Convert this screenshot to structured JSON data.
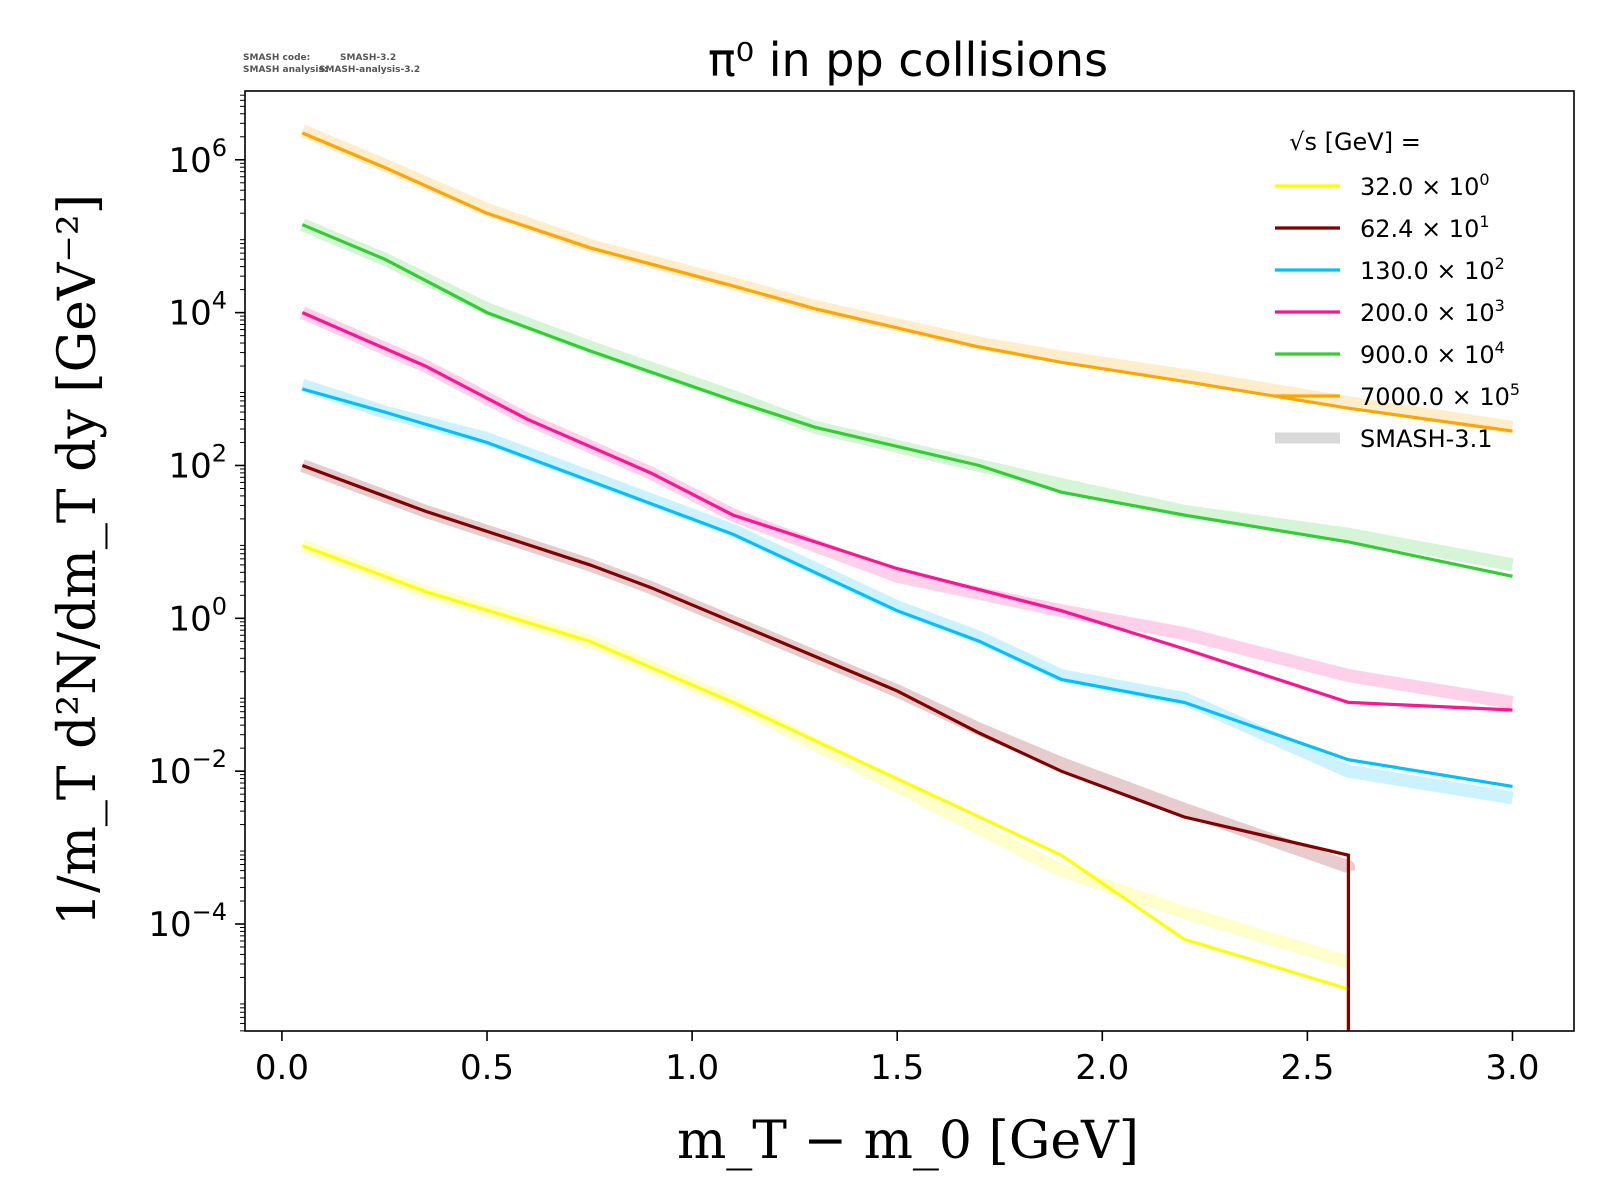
{
  "meta": {
    "code_label": "SMASH code:",
    "code_value": "SMASH-3.2",
    "analysis_label": "SMASH analysis:",
    "analysis_value": "SMASH-analysis-3.2"
  },
  "chart_data": {
    "type": "line",
    "title": "π⁰ in pp collisions",
    "xlabel": "m_T − m_0 [GeV]",
    "ylabel": "1/m_T d²N/dm_T dy [GeV⁻²]",
    "xlim": [
      -0.09,
      3.15
    ],
    "ylim_log10": [
      -5.4,
      6.9
    ],
    "y_scale": "log",
    "x_ticks": [
      "0.0",
      "0.5",
      "1.0",
      "1.5",
      "2.0",
      "2.5",
      "3.0"
    ],
    "y_tick_exponents": [
      6,
      4,
      2,
      0,
      -2,
      -4
    ],
    "legend": {
      "title": "√s [GeV] =",
      "placement": "top-right"
    },
    "series": [
      {
        "name": "32.0 × 10⁰",
        "mantissa": "32.0",
        "exponent": "0",
        "color": "#ffff00",
        "x": [
          0.05,
          0.35,
          0.75,
          1.1,
          1.5,
          1.9,
          2.2,
          2.6,
          2.6
        ],
        "log10_y": [
          0.95,
          0.35,
          -0.3,
          -1.1,
          -2.1,
          -3.1,
          -4.2,
          -4.85,
          -5.4
        ],
        "band_log10_y": [
          0.95,
          0.35,
          -0.3,
          -1.1,
          -2.2,
          -3.3,
          -3.85,
          -4.5,
          -4.5
        ]
      },
      {
        "name": "62.4 × 10¹",
        "mantissa": "62.4",
        "exponent": "1",
        "color": "#800000",
        "x": [
          0.05,
          0.35,
          0.75,
          0.9,
          1.3,
          1.5,
          1.7,
          1.9,
          2.2,
          2.6,
          2.6
        ],
        "log10_y": [
          2.0,
          1.4,
          0.7,
          0.4,
          -0.5,
          -0.95,
          -1.5,
          -2.0,
          -2.6,
          -3.1,
          -5.4
        ],
        "band_log10_y": [
          2.0,
          1.4,
          0.7,
          0.4,
          -0.5,
          -0.95,
          -1.45,
          -1.9,
          -2.5,
          -3.25,
          -3.3
        ]
      },
      {
        "name": "130.0 × 10²",
        "mantissa": "130.0",
        "exponent": "2",
        "color": "#00bfff",
        "x": [
          0.05,
          0.25,
          0.5,
          0.75,
          1.1,
          1.5,
          1.7,
          1.9,
          2.2,
          2.6,
          3.0
        ],
        "log10_y": [
          3.0,
          2.7,
          2.3,
          1.8,
          1.1,
          0.1,
          -0.3,
          -0.8,
          -1.1,
          -1.85,
          -2.2
        ],
        "band_log10_y": [
          3.05,
          2.7,
          2.35,
          1.85,
          1.15,
          0.15,
          -0.25,
          -0.75,
          -1.05,
          -2.0,
          -2.35
        ]
      },
      {
        "name": "200.0 × 10³",
        "mantissa": "200.0",
        "exponent": "3",
        "color": "#ff1493",
        "x": [
          0.05,
          0.35,
          0.6,
          0.9,
          1.1,
          1.5,
          1.9,
          2.2,
          2.6,
          3.0
        ],
        "log10_y": [
          4.0,
          3.3,
          2.6,
          1.9,
          1.35,
          0.65,
          0.1,
          -0.4,
          -1.1,
          -1.2
        ],
        "band_log10_y": [
          4.0,
          3.3,
          2.6,
          1.9,
          1.35,
          0.55,
          0.1,
          -0.2,
          -0.75,
          -1.1
        ]
      },
      {
        "name": "900.0 × 10⁴",
        "mantissa": "900.0",
        "exponent": "4",
        "color": "#32cd32",
        "x": [
          0.05,
          0.25,
          0.5,
          0.75,
          1.1,
          1.3,
          1.7,
          1.9,
          2.2,
          2.6,
          3.0
        ],
        "log10_y": [
          5.15,
          4.7,
          4.0,
          3.5,
          2.85,
          2.5,
          2.0,
          1.65,
          1.35,
          1.0,
          0.55
        ],
        "band_log10_y": [
          5.15,
          4.7,
          4.05,
          3.55,
          2.9,
          2.5,
          2.0,
          1.75,
          1.4,
          1.1,
          0.7
        ]
      },
      {
        "name": "7000.0 × 10⁵",
        "mantissa": "7000.0",
        "exponent": "5",
        "color": "#ffa500",
        "x": [
          0.05,
          0.25,
          0.5,
          0.75,
          1.1,
          1.3,
          1.7,
          1.9,
          2.2,
          2.6,
          3.0
        ],
        "log10_y": [
          6.35,
          5.9,
          5.3,
          4.85,
          4.35,
          4.05,
          3.55,
          3.35,
          3.1,
          2.75,
          2.45
        ],
        "band_log10_y": [
          6.38,
          5.93,
          5.35,
          4.88,
          4.38,
          4.08,
          3.6,
          3.42,
          3.18,
          2.82,
          2.5
        ]
      }
    ],
    "band_label": "SMASH-3.1",
    "band_color": "#d9d9d9"
  }
}
